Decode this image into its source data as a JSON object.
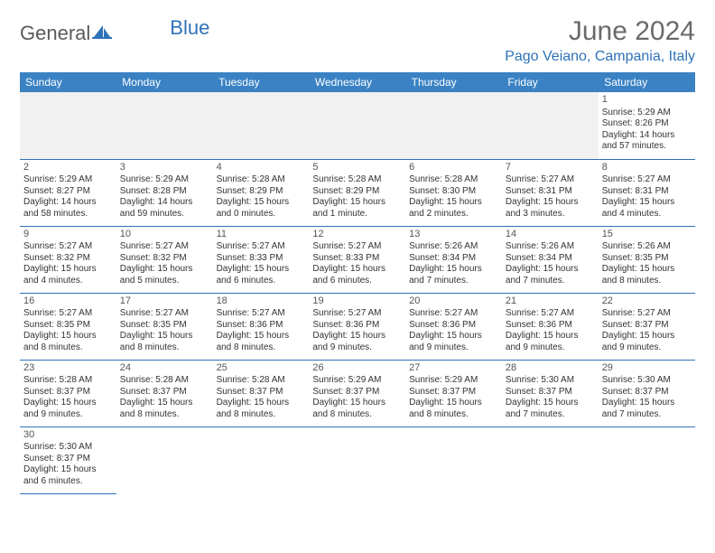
{
  "brand": {
    "part1": "General",
    "part2": "Blue"
  },
  "title": "June 2024",
  "location": "Pago Veiano, Campania, Italy",
  "columns": [
    "Sunday",
    "Monday",
    "Tuesday",
    "Wednesday",
    "Thursday",
    "Friday",
    "Saturday"
  ],
  "colors": {
    "header_bg": "#3a82c4",
    "header_text": "#ffffff",
    "accent": "#2e72b8",
    "title_text": "#6a6a6a",
    "body_text": "#333333",
    "blank_bg": "#f1f1f1"
  },
  "weeks": [
    [
      null,
      null,
      null,
      null,
      null,
      null,
      {
        "n": "1",
        "sr": "Sunrise: 5:29 AM",
        "ss": "Sunset: 8:26 PM",
        "dl": "Daylight: 14 hours and 57 minutes."
      }
    ],
    [
      {
        "n": "2",
        "sr": "Sunrise: 5:29 AM",
        "ss": "Sunset: 8:27 PM",
        "dl": "Daylight: 14 hours and 58 minutes."
      },
      {
        "n": "3",
        "sr": "Sunrise: 5:29 AM",
        "ss": "Sunset: 8:28 PM",
        "dl": "Daylight: 14 hours and 59 minutes."
      },
      {
        "n": "4",
        "sr": "Sunrise: 5:28 AM",
        "ss": "Sunset: 8:29 PM",
        "dl": "Daylight: 15 hours and 0 minutes."
      },
      {
        "n": "5",
        "sr": "Sunrise: 5:28 AM",
        "ss": "Sunset: 8:29 PM",
        "dl": "Daylight: 15 hours and 1 minute."
      },
      {
        "n": "6",
        "sr": "Sunrise: 5:28 AM",
        "ss": "Sunset: 8:30 PM",
        "dl": "Daylight: 15 hours and 2 minutes."
      },
      {
        "n": "7",
        "sr": "Sunrise: 5:27 AM",
        "ss": "Sunset: 8:31 PM",
        "dl": "Daylight: 15 hours and 3 minutes."
      },
      {
        "n": "8",
        "sr": "Sunrise: 5:27 AM",
        "ss": "Sunset: 8:31 PM",
        "dl": "Daylight: 15 hours and 4 minutes."
      }
    ],
    [
      {
        "n": "9",
        "sr": "Sunrise: 5:27 AM",
        "ss": "Sunset: 8:32 PM",
        "dl": "Daylight: 15 hours and 4 minutes."
      },
      {
        "n": "10",
        "sr": "Sunrise: 5:27 AM",
        "ss": "Sunset: 8:32 PM",
        "dl": "Daylight: 15 hours and 5 minutes."
      },
      {
        "n": "11",
        "sr": "Sunrise: 5:27 AM",
        "ss": "Sunset: 8:33 PM",
        "dl": "Daylight: 15 hours and 6 minutes."
      },
      {
        "n": "12",
        "sr": "Sunrise: 5:27 AM",
        "ss": "Sunset: 8:33 PM",
        "dl": "Daylight: 15 hours and 6 minutes."
      },
      {
        "n": "13",
        "sr": "Sunrise: 5:26 AM",
        "ss": "Sunset: 8:34 PM",
        "dl": "Daylight: 15 hours and 7 minutes."
      },
      {
        "n": "14",
        "sr": "Sunrise: 5:26 AM",
        "ss": "Sunset: 8:34 PM",
        "dl": "Daylight: 15 hours and 7 minutes."
      },
      {
        "n": "15",
        "sr": "Sunrise: 5:26 AM",
        "ss": "Sunset: 8:35 PM",
        "dl": "Daylight: 15 hours and 8 minutes."
      }
    ],
    [
      {
        "n": "16",
        "sr": "Sunrise: 5:27 AM",
        "ss": "Sunset: 8:35 PM",
        "dl": "Daylight: 15 hours and 8 minutes."
      },
      {
        "n": "17",
        "sr": "Sunrise: 5:27 AM",
        "ss": "Sunset: 8:35 PM",
        "dl": "Daylight: 15 hours and 8 minutes."
      },
      {
        "n": "18",
        "sr": "Sunrise: 5:27 AM",
        "ss": "Sunset: 8:36 PM",
        "dl": "Daylight: 15 hours and 8 minutes."
      },
      {
        "n": "19",
        "sr": "Sunrise: 5:27 AM",
        "ss": "Sunset: 8:36 PM",
        "dl": "Daylight: 15 hours and 9 minutes."
      },
      {
        "n": "20",
        "sr": "Sunrise: 5:27 AM",
        "ss": "Sunset: 8:36 PM",
        "dl": "Daylight: 15 hours and 9 minutes."
      },
      {
        "n": "21",
        "sr": "Sunrise: 5:27 AM",
        "ss": "Sunset: 8:36 PM",
        "dl": "Daylight: 15 hours and 9 minutes."
      },
      {
        "n": "22",
        "sr": "Sunrise: 5:27 AM",
        "ss": "Sunset: 8:37 PM",
        "dl": "Daylight: 15 hours and 9 minutes."
      }
    ],
    [
      {
        "n": "23",
        "sr": "Sunrise: 5:28 AM",
        "ss": "Sunset: 8:37 PM",
        "dl": "Daylight: 15 hours and 9 minutes."
      },
      {
        "n": "24",
        "sr": "Sunrise: 5:28 AM",
        "ss": "Sunset: 8:37 PM",
        "dl": "Daylight: 15 hours and 8 minutes."
      },
      {
        "n": "25",
        "sr": "Sunrise: 5:28 AM",
        "ss": "Sunset: 8:37 PM",
        "dl": "Daylight: 15 hours and 8 minutes."
      },
      {
        "n": "26",
        "sr": "Sunrise: 5:29 AM",
        "ss": "Sunset: 8:37 PM",
        "dl": "Daylight: 15 hours and 8 minutes."
      },
      {
        "n": "27",
        "sr": "Sunrise: 5:29 AM",
        "ss": "Sunset: 8:37 PM",
        "dl": "Daylight: 15 hours and 8 minutes."
      },
      {
        "n": "28",
        "sr": "Sunrise: 5:30 AM",
        "ss": "Sunset: 8:37 PM",
        "dl": "Daylight: 15 hours and 7 minutes."
      },
      {
        "n": "29",
        "sr": "Sunrise: 5:30 AM",
        "ss": "Sunset: 8:37 PM",
        "dl": "Daylight: 15 hours and 7 minutes."
      }
    ],
    [
      {
        "n": "30",
        "sr": "Sunrise: 5:30 AM",
        "ss": "Sunset: 8:37 PM",
        "dl": "Daylight: 15 hours and 6 minutes."
      },
      null,
      null,
      null,
      null,
      null,
      null
    ]
  ]
}
